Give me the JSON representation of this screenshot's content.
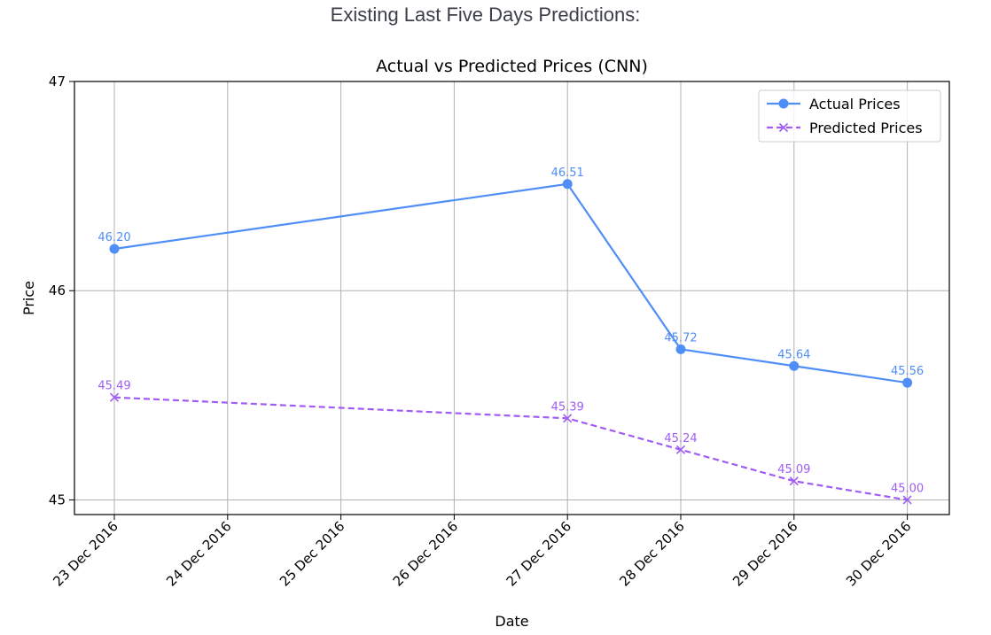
{
  "page": {
    "heading": "Existing Last Five Days Predictions:"
  },
  "chart_data": {
    "type": "line",
    "title": "Actual vs Predicted Prices (CNN)",
    "xlabel": "Date",
    "ylabel": "Price",
    "x": [
      "23 Dec 2016",
      "27 Dec 2016",
      "28 Dec 2016",
      "29 Dec 2016",
      "30 Dec 2016"
    ],
    "x_ticks": [
      "23 Dec 2016",
      "24 Dec 2016",
      "25 Dec 2016",
      "26 Dec 2016",
      "27 Dec 2016",
      "28 Dec 2016",
      "29 Dec 2016",
      "30 Dec 2016"
    ],
    "y_ticks": [
      "45",
      "46",
      "47"
    ],
    "ylim": [
      44.93,
      47.0
    ],
    "grid": true,
    "legend_position": "top-right",
    "series": [
      {
        "name": "Actual Prices",
        "color": "#4f8ef7",
        "style": "solid",
        "marker": "circle",
        "values": [
          46.2,
          46.51,
          45.72,
          45.64,
          45.56
        ],
        "labels": [
          "46.20",
          "46.51",
          "45.72",
          "45.64",
          "45.56"
        ]
      },
      {
        "name": "Predicted Prices",
        "color": "#a05cf5",
        "style": "dashed",
        "marker": "x",
        "values": [
          45.49,
          45.39,
          45.24,
          45.09,
          45.0
        ],
        "labels": [
          "45.49",
          "45.39",
          "45.24",
          "45.09",
          "45.00"
        ]
      }
    ]
  }
}
